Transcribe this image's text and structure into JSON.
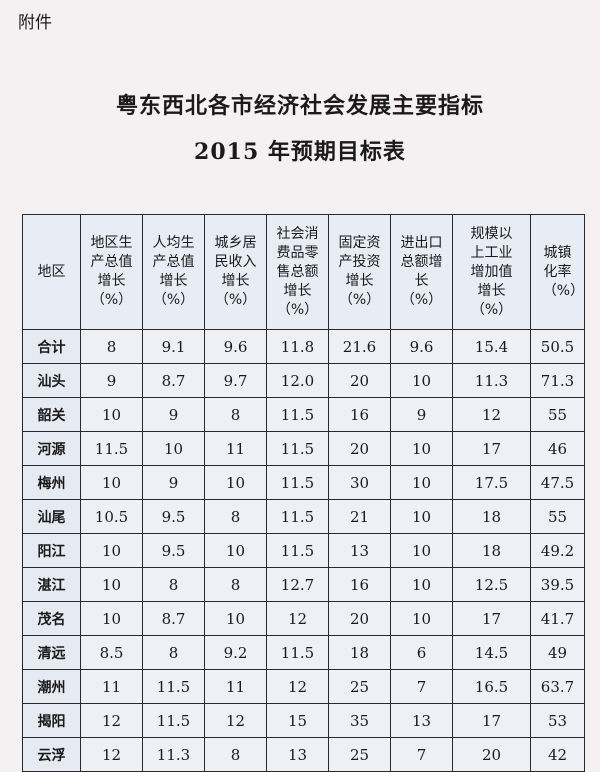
{
  "attachment_label": "附件",
  "title_line1": "粤东西北各市经济社会发展主要指标",
  "title_line2": "2015 年预期目标表",
  "table": {
    "headers": [
      "地区",
      "地区生产总值增长（%）",
      "人均生产总值增长（%）",
      "城乡居民收入增长（%）",
      "社会消费品零售总额增长（%）",
      "固定资产投资增长（%）",
      "进出口总额增长（%）",
      "规模以上工业增加值增长（%）",
      "城镇化率（%）"
    ],
    "rows": [
      [
        "合计",
        "8",
        "9.1",
        "9.6",
        "11.8",
        "21.6",
        "9.6",
        "15.4",
        "50.5"
      ],
      [
        "汕头",
        "9",
        "8.7",
        "9.7",
        "12.0",
        "20",
        "10",
        "11.3",
        "71.3"
      ],
      [
        "韶关",
        "10",
        "9",
        "8",
        "11.5",
        "16",
        "9",
        "12",
        "55"
      ],
      [
        "河源",
        "11.5",
        "10",
        "11",
        "11.5",
        "20",
        "10",
        "17",
        "46"
      ],
      [
        "梅州",
        "10",
        "9",
        "10",
        "11.5",
        "30",
        "10",
        "17.5",
        "47.5"
      ],
      [
        "汕尾",
        "10.5",
        "9.5",
        "8",
        "11.5",
        "21",
        "10",
        "18",
        "55"
      ],
      [
        "阳江",
        "10",
        "9.5",
        "10",
        "11.5",
        "13",
        "10",
        "18",
        "49.2"
      ],
      [
        "湛江",
        "10",
        "8",
        "8",
        "12.7",
        "16",
        "10",
        "12.5",
        "39.5"
      ],
      [
        "茂名",
        "10",
        "8.7",
        "10",
        "12",
        "20",
        "10",
        "17",
        "41.7"
      ],
      [
        "清远",
        "8.5",
        "8",
        "9.2",
        "11.5",
        "18",
        "6",
        "14.5",
        "49"
      ],
      [
        "潮州",
        "11",
        "11.5",
        "11",
        "12",
        "25",
        "7",
        "16.5",
        "63.7"
      ],
      [
        "揭阳",
        "12",
        "11.5",
        "12",
        "15",
        "35",
        "13",
        "17",
        "53"
      ],
      [
        "云浮",
        "12",
        "11.3",
        "8",
        "13",
        "25",
        "7",
        "20",
        "42"
      ]
    ]
  }
}
